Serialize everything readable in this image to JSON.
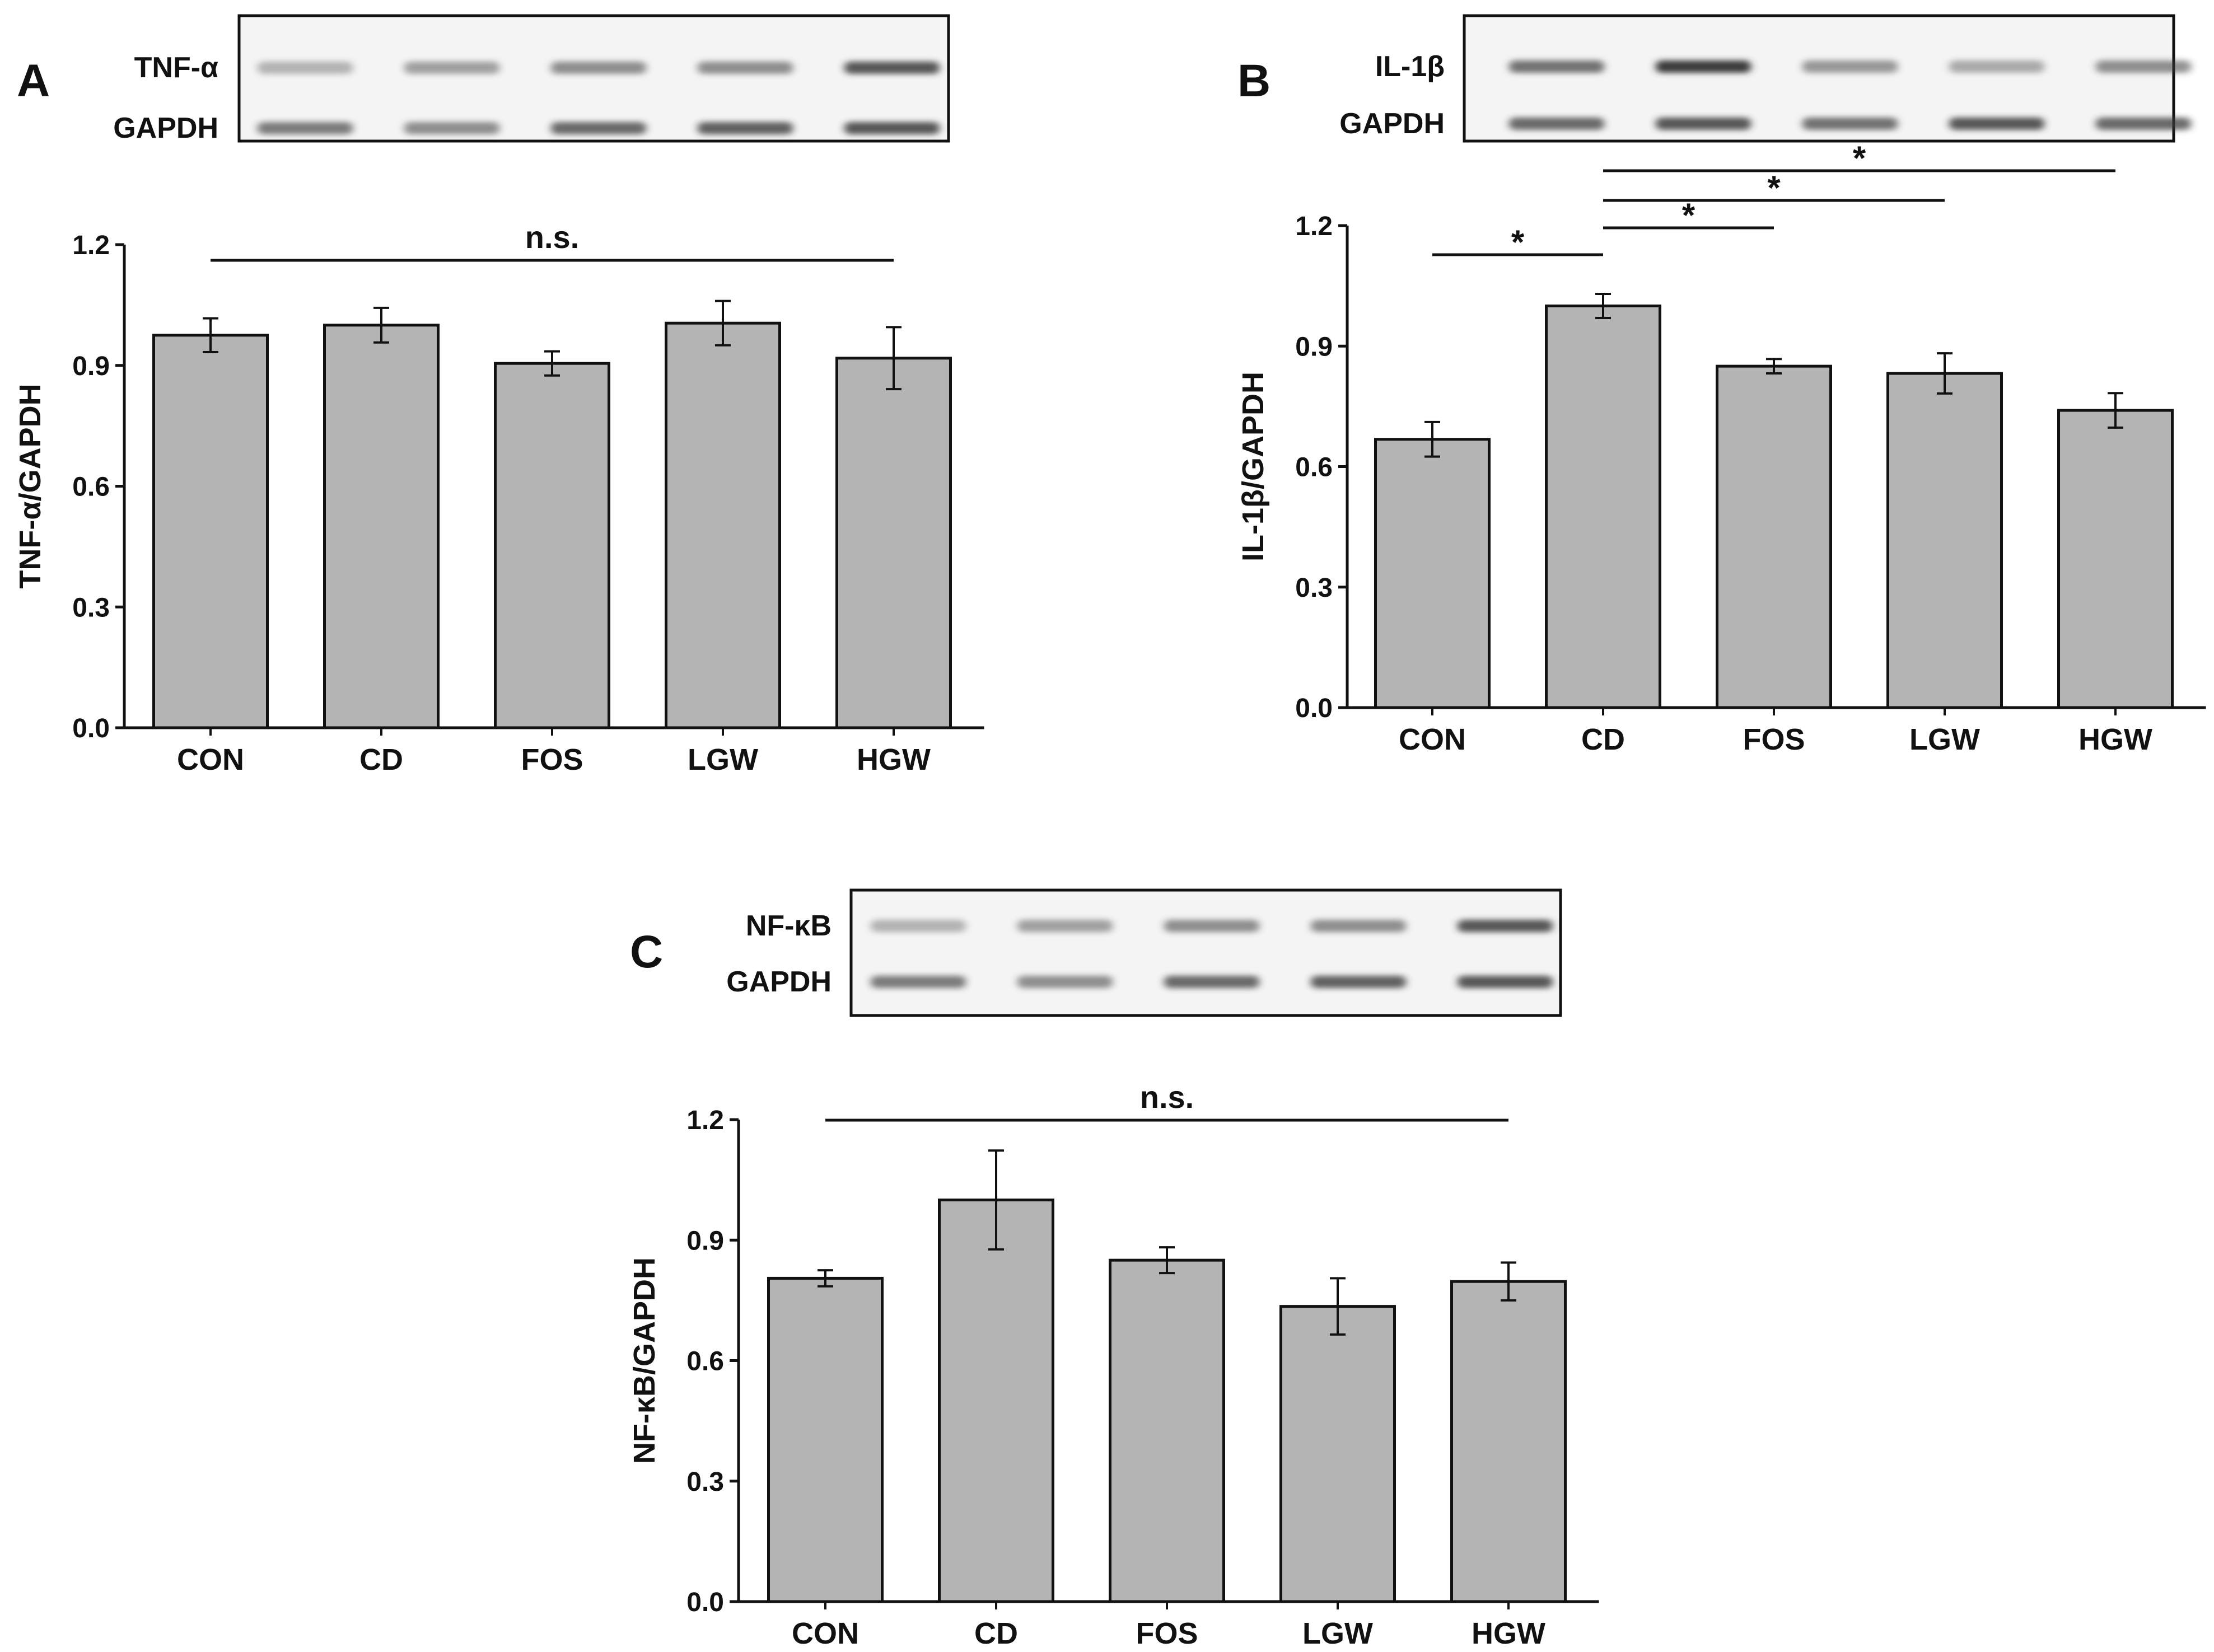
{
  "chart_data": [
    {
      "panel": "A",
      "type": "bar",
      "categories": [
        "CON",
        "CD",
        "FOS",
        "LGW",
        "HGW"
      ],
      "values": [
        0.975,
        1.0,
        0.905,
        1.005,
        0.918
      ],
      "errors": [
        0.042,
        0.043,
        0.03,
        0.055,
        0.077
      ],
      "ylabel": "TNF-α/GAPDH",
      "ylim": [
        0,
        1.2
      ],
      "yticks": [
        "0.0",
        "0.3",
        "0.6",
        "0.9",
        "1.2"
      ],
      "blot_labels": [
        "TNF-α",
        "GAPDH"
      ],
      "significance": [
        {
          "from": 0,
          "to": 4,
          "label": "n.s."
        }
      ]
    },
    {
      "panel": "B",
      "type": "bar",
      "categories": [
        "CON",
        "CD",
        "FOS",
        "LGW",
        "HGW"
      ],
      "values": [
        0.668,
        1.0,
        0.85,
        0.832,
        0.74
      ],
      "errors": [
        0.043,
        0.03,
        0.018,
        0.05,
        0.043
      ],
      "ylabel": "IL-1β/GAPDH",
      "ylim": [
        0,
        1.2
      ],
      "yticks": [
        "0.0",
        "0.3",
        "0.6",
        "0.9",
        "1.2"
      ],
      "blot_labels": [
        "IL-1β",
        "GAPDH"
      ],
      "significance": [
        {
          "from": 0,
          "to": 1,
          "label": "*"
        },
        {
          "from": 1,
          "to": 2,
          "label": "*"
        },
        {
          "from": 1,
          "to": 3,
          "label": "*"
        },
        {
          "from": 1,
          "to": 4,
          "label": "*"
        }
      ]
    },
    {
      "panel": "C",
      "type": "bar",
      "categories": [
        "CON",
        "CD",
        "FOS",
        "LGW",
        "HGW"
      ],
      "values": [
        0.805,
        1.0,
        0.85,
        0.735,
        0.797
      ],
      "errors": [
        0.02,
        0.123,
        0.032,
        0.07,
        0.047
      ],
      "ylabel": "NF-κB/GAPDH",
      "ylim": [
        0,
        1.2
      ],
      "yticks": [
        "0.0",
        "0.3",
        "0.6",
        "0.9",
        "1.2"
      ],
      "blot_labels": [
        "NF-κB",
        "GAPDH"
      ],
      "significance": [
        {
          "from": 0,
          "to": 4,
          "label": "n.s."
        }
      ]
    }
  ],
  "colors": {
    "bar_fill": "#b4b4b4",
    "bar_stroke": "#111111",
    "axis": "#111111",
    "blot_band": "#3a3a3a"
  }
}
